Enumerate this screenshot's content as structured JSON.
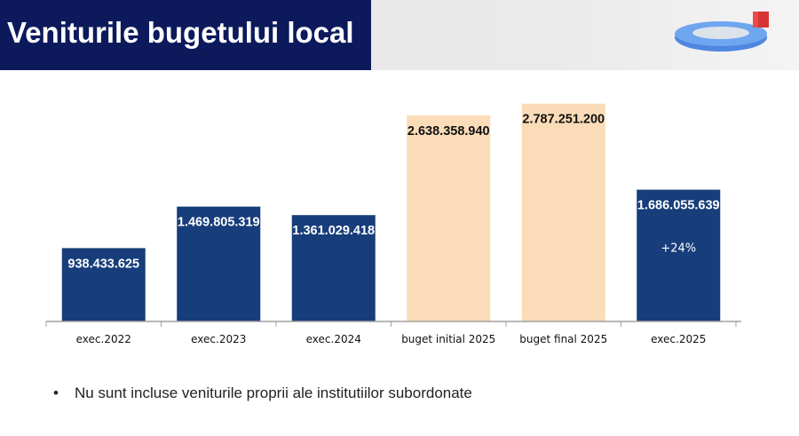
{
  "header": {
    "title": "Veniturile bugetului local"
  },
  "chart_data": {
    "type": "bar",
    "title": "",
    "xlabel": "",
    "ylabel": "",
    "ylim": [
      0,
      3000000000
    ],
    "grid": false,
    "categories": [
      "exec.2022",
      "exec.2023",
      "exec.2024",
      "buget initial 2025",
      "buget final 2025",
      "exec.2025"
    ],
    "values": [
      938433625,
      1469805319,
      1361029418,
      2638358940,
      2787251200,
      1686055639
    ],
    "labels": [
      "938.433.625",
      "1.469.805.319",
      "1.361.029.418",
      "2.638.358.940",
      "2.787.251.200",
      "1.686.055.639"
    ],
    "kinds": [
      "exec",
      "exec",
      "exec",
      "budget",
      "budget",
      "exec"
    ],
    "annotations": [
      {
        "category": "exec.2025",
        "text": "+24%"
      }
    ],
    "colors": {
      "exec": "#173d7a",
      "budget": "#fbdcb8",
      "exec_text": "#ffffff",
      "budget_text": "#111111",
      "axis": "#a0a0a0"
    }
  },
  "note": {
    "bullet": "•",
    "text": "Nu sunt incluse veniturile proprii ale institutiilor subordonate"
  }
}
